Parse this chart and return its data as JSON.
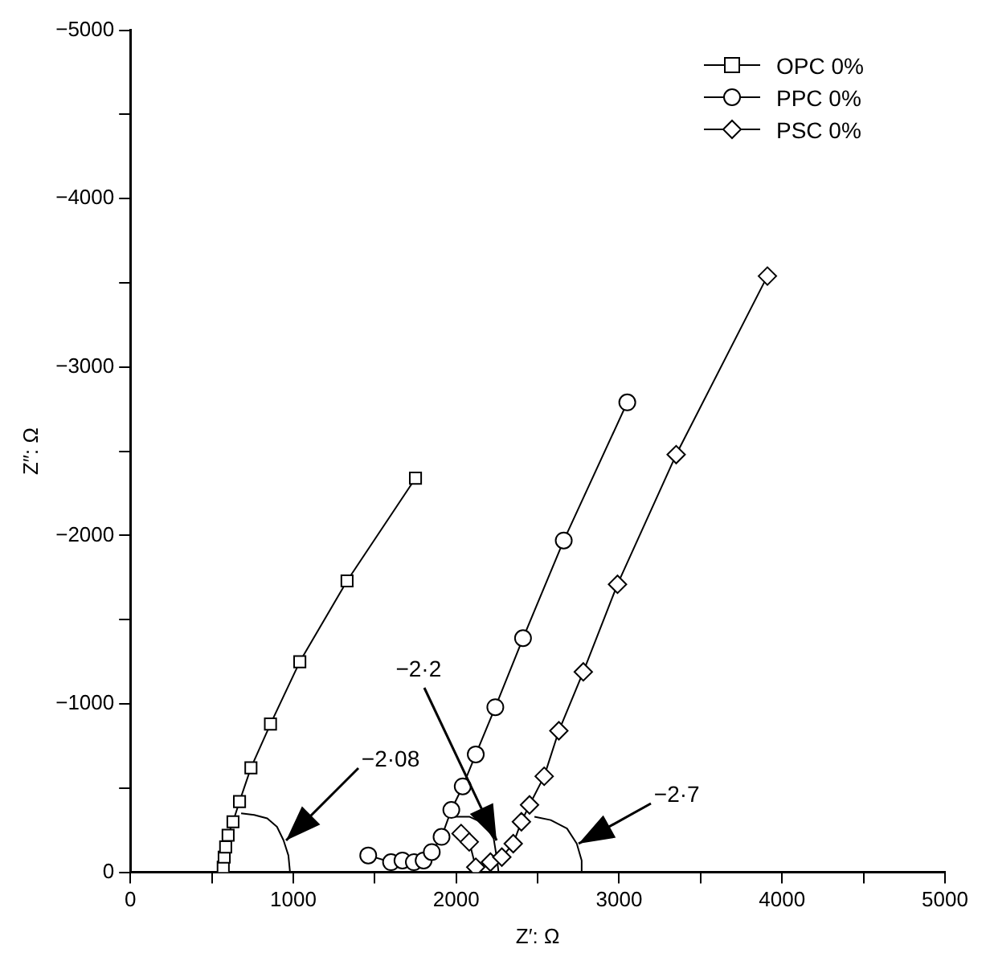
{
  "chart_data": {
    "type": "line",
    "xlabel": "Z′: Ω",
    "ylabel": "Z″: Ω",
    "xlim": [
      0,
      5000
    ],
    "xticks": [
      0,
      {
        "value": 500,
        "label": null
      },
      1000,
      {
        "value": 1500,
        "label": null
      },
      2000,
      {
        "value": 2500,
        "label": null
      },
      3000,
      {
        "value": 3500,
        "label": null
      },
      4000,
      {
        "value": 4500,
        "label": null
      },
      5000
    ],
    "ylim": [
      0,
      -5000
    ],
    "yticks": [
      {
        "value": 0,
        "label": "0"
      },
      {
        "value": -500,
        "label": null
      },
      {
        "value": -1000,
        "label": "−1000"
      },
      {
        "value": -1500,
        "label": null
      },
      {
        "value": -2000,
        "label": "−2000"
      },
      {
        "value": -2500,
        "label": null
      },
      {
        "value": -3000,
        "label": "−3000"
      },
      {
        "value": -3500,
        "label": null
      },
      {
        "value": -4000,
        "label": "−4000"
      },
      {
        "value": -4500,
        "label": null
      },
      {
        "value": -5000,
        "label": "−5000"
      }
    ],
    "legend": "top right",
    "series": [
      {
        "name": "OPC 0%",
        "marker": "square",
        "color": "#000000",
        "x": [
          570,
          576,
          585,
          600,
          630,
          670,
          740,
          860,
          1040,
          1330,
          1750
        ],
        "values": [
          -30,
          -90,
          -150,
          -220,
          -300,
          -420,
          -620,
          -880,
          -1250,
          -1730,
          -2340
        ]
      },
      {
        "name": "PPC 0%",
        "marker": "circle",
        "color": "#000000",
        "x": [
          1460,
          1600,
          1670,
          1740,
          1800,
          1850,
          1910,
          1970,
          2040,
          2120,
          2240,
          2410,
          2660,
          3050
        ],
        "values": [
          -100,
          -60,
          -70,
          -60,
          -70,
          -120,
          -210,
          -370,
          -510,
          -700,
          -980,
          -1390,
          -1970,
          -2790
        ]
      },
      {
        "name": "PSC 0%",
        "marker": "diamond",
        "color": "#000000",
        "x": [
          2030,
          2080,
          2120,
          2210,
          2280,
          2350,
          2400,
          2450,
          2540,
          2630,
          2780,
          2990,
          3350,
          3910
        ],
        "values": [
          -230,
          -180,
          -30,
          -60,
          -90,
          -170,
          -300,
          -400,
          -570,
          -840,
          -1190,
          -1710,
          -2480,
          -3540
        ]
      },
      {
        "marker": "none",
        "color": "#000000",
        "x": [
          680,
          760,
          840,
          900,
          940,
          970,
          980
        ],
        "values": [
          -350,
          -340,
          -320,
          -270,
          -190,
          -100,
          0
        ]
      },
      {
        "marker": "none",
        "color": "#000000",
        "x": [
          1980,
          2080,
          2170,
          2230,
          2250,
          2260
        ],
        "values": [
          -330,
          -330,
          -290,
          -200,
          -80,
          0
        ]
      },
      {
        "marker": "none",
        "color": "#000000",
        "x": [
          2480,
          2580,
          2680,
          2740,
          2770,
          2770
        ],
        "values": [
          -330,
          -310,
          -260,
          -170,
          -70,
          0
        ]
      }
    ],
    "annotations": [
      {
        "text": "−2·08",
        "x": 955,
        "y": -190
      },
      {
        "text": "−2·2",
        "x": 2250,
        "y": -190
      },
      {
        "text": "−2·7",
        "x": 2750,
        "y": -170
      }
    ]
  }
}
